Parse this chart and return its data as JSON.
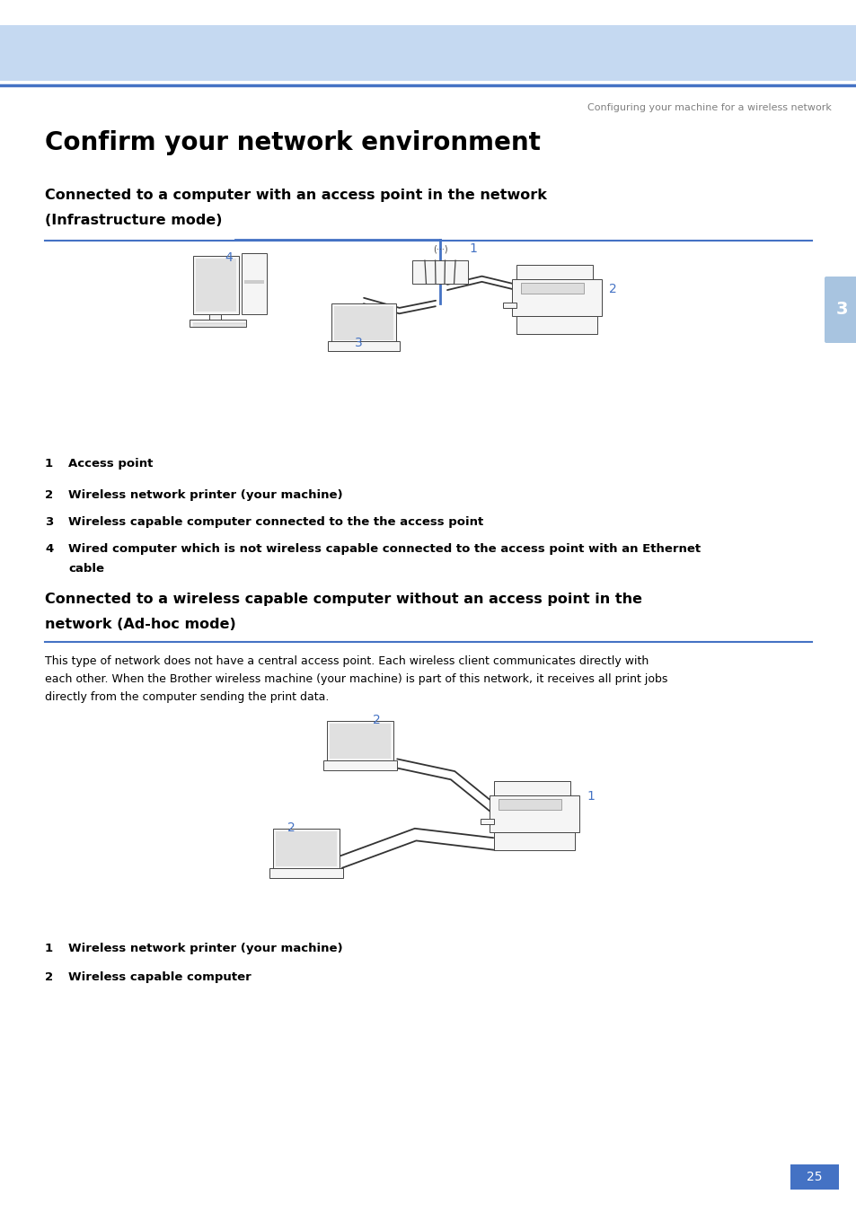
{
  "page_bg": "#ffffff",
  "header_bg": "#c5d9f1",
  "header_line_color": "#4472c4",
  "chapter_tab_bg": "#a8c4e0",
  "chapter_tab_text": "3",
  "header_caption": "Configuring your machine for a wireless network",
  "header_caption_color": "#808080",
  "main_title": "Confirm your network environment",
  "main_title_color": "#000000",
  "section1_title_line1": "Connected to a computer with an access point in the network",
  "section1_title_line2": "(Infrastructure mode)",
  "section1_title_color": "#000000",
  "section1_line_color": "#4472c4",
  "section2_title_line1": "Connected to a wireless capable computer without an access point in the",
  "section2_title_line2": "network (Ad-hoc mode)",
  "section2_title_color": "#000000",
  "section2_line_color": "#4472c4",
  "section2_body_line1": "This type of network does not have a central access point. Each wireless client communicates directly with",
  "section2_body_line2": "each other. When the Brother wireless machine (your machine) is part of this network, it receives all print jobs",
  "section2_body_line3": "directly from the computer sending the print data.",
  "section2_body_color": "#000000",
  "bullet_color": "#000000",
  "bullets1": [
    {
      "num": "1",
      "text": "Access point"
    },
    {
      "num": "2",
      "text": "Wireless network printer (your machine)"
    },
    {
      "num": "3",
      "text": "Wireless capable computer connected to the the access point"
    },
    {
      "num": "4",
      "text": "Wired computer which is not wireless capable connected to the access point with an Ethernet",
      "text2": "cable"
    }
  ],
  "bullets2": [
    {
      "num": "1",
      "text": "Wireless network printer (your machine)"
    },
    {
      "num": "2",
      "text": "Wireless capable computer"
    }
  ],
  "page_num": "25",
  "page_num_bg": "#4472c4",
  "page_num_color": "#ffffff",
  "label_color": "#4472c4",
  "wire_color": "#4472c4"
}
